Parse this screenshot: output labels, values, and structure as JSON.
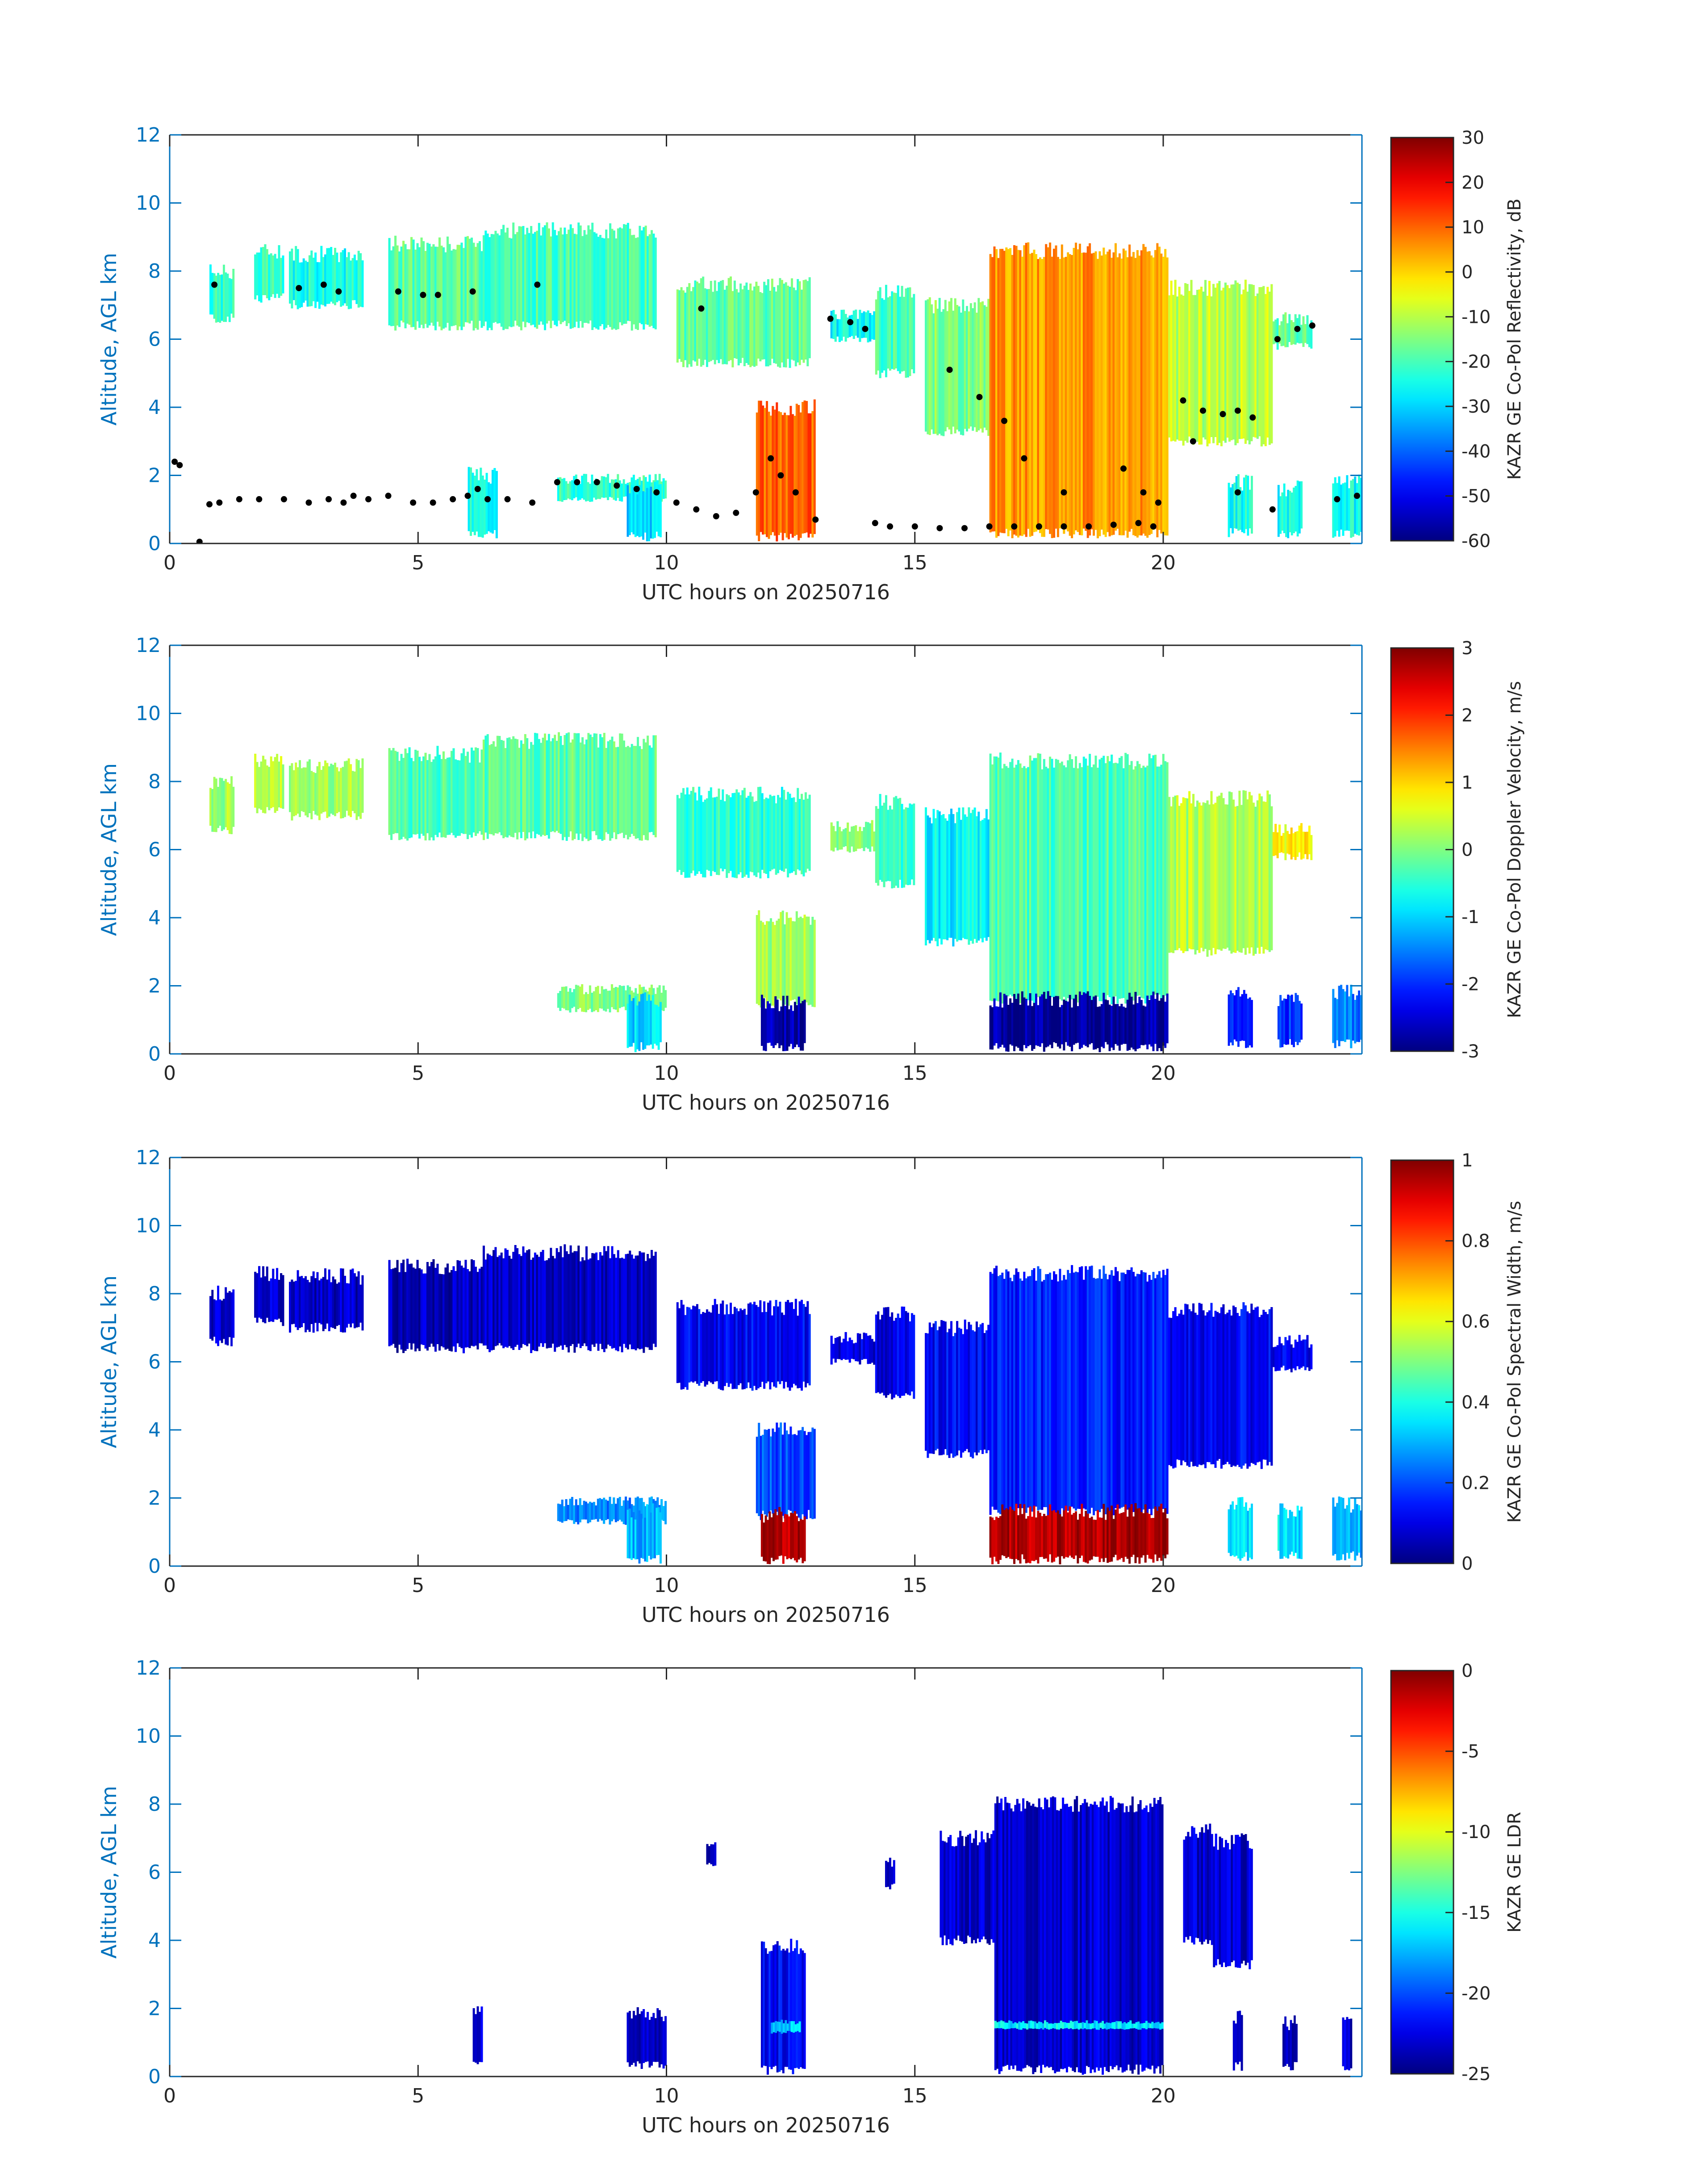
{
  "colors": {
    "axis_blue": "#0072BD",
    "tick_text_dark": "#262626",
    "echo_dots": "#000000"
  },
  "colormap": "jet",
  "chart_data": [
    {
      "type": "heatmap",
      "title": "",
      "xlabel": "UTC hours on 20250716",
      "ylabel": "Altitude, AGL km",
      "xlim": [
        0,
        24
      ],
      "ylim": [
        0,
        12
      ],
      "xticks": [
        0,
        5,
        10,
        15,
        20
      ],
      "yticks": [
        0,
        2,
        4,
        6,
        8,
        10,
        12
      ],
      "colorbar": {
        "label": "KAZR GE Co-Pol Reflectivity, dB",
        "min": -60,
        "max": 30,
        "ticks": [
          30,
          20,
          10,
          0,
          -10,
          -20,
          -30,
          -40,
          -50,
          -60
        ]
      },
      "variable": "reflectivity",
      "scatter_overlay": {
        "description": "cloud base / top markers",
        "color": "#000000",
        "points": [
          [
            0.1,
            2.4
          ],
          [
            0.2,
            2.3
          ],
          [
            0.6,
            0.05
          ],
          [
            0.8,
            1.15
          ],
          [
            1.0,
            1.2
          ],
          [
            1.4,
            1.3
          ],
          [
            1.8,
            1.3
          ],
          [
            2.3,
            1.3
          ],
          [
            2.8,
            1.2
          ],
          [
            3.2,
            1.3
          ],
          [
            3.5,
            1.2
          ],
          [
            3.7,
            1.4
          ],
          [
            4.0,
            1.3
          ],
          [
            4.4,
            1.4
          ],
          [
            4.9,
            1.2
          ],
          [
            5.3,
            1.2
          ],
          [
            5.7,
            1.3
          ],
          [
            6.0,
            1.4
          ],
          [
            6.2,
            1.6
          ],
          [
            6.4,
            1.3
          ],
          [
            6.8,
            1.3
          ],
          [
            7.3,
            1.2
          ],
          [
            7.8,
            1.8
          ],
          [
            8.2,
            1.8
          ],
          [
            8.6,
            1.8
          ],
          [
            9.0,
            1.7
          ],
          [
            9.4,
            1.6
          ],
          [
            9.8,
            1.5
          ],
          [
            10.2,
            1.2
          ],
          [
            10.6,
            1.0
          ],
          [
            11.0,
            0.8
          ],
          [
            11.4,
            0.9
          ],
          [
            11.8,
            1.5
          ],
          [
            12.1,
            2.5
          ],
          [
            12.3,
            2.0
          ],
          [
            12.6,
            1.5
          ],
          [
            13.0,
            0.7
          ],
          [
            14.2,
            0.6
          ],
          [
            14.5,
            0.5
          ],
          [
            15.0,
            0.5
          ],
          [
            15.5,
            0.45
          ],
          [
            16.0,
            0.45
          ],
          [
            16.5,
            0.5
          ],
          [
            17.0,
            0.5
          ],
          [
            17.5,
            0.5
          ],
          [
            18.0,
            0.5
          ],
          [
            18.5,
            0.5
          ],
          [
            19.0,
            0.55
          ],
          [
            19.5,
            0.6
          ],
          [
            19.8,
            0.5
          ],
          [
            16.8,
            3.6
          ],
          [
            17.2,
            2.5
          ],
          [
            18.0,
            1.5
          ],
          [
            19.2,
            2.2
          ],
          [
            19.6,
            1.5
          ],
          [
            19.9,
            1.2
          ],
          [
            0.9,
            7.6
          ],
          [
            2.6,
            7.5
          ],
          [
            3.1,
            7.6
          ],
          [
            3.4,
            7.4
          ],
          [
            4.6,
            7.4
          ],
          [
            5.1,
            7.3
          ],
          [
            5.4,
            7.3
          ],
          [
            6.1,
            7.4
          ],
          [
            7.4,
            7.6
          ],
          [
            10.7,
            6.9
          ],
          [
            13.3,
            6.6
          ],
          [
            13.7,
            6.5
          ],
          [
            14.0,
            6.3
          ],
          [
            15.7,
            5.1
          ],
          [
            16.3,
            4.3
          ],
          [
            20.4,
            4.2
          ],
          [
            20.8,
            3.9
          ],
          [
            21.2,
            3.8
          ],
          [
            21.5,
            3.9
          ],
          [
            21.8,
            3.7
          ],
          [
            22.3,
            6.0
          ],
          [
            22.7,
            6.3
          ],
          [
            23.0,
            6.4
          ],
          [
            20.6,
            3.0
          ],
          [
            21.5,
            1.5
          ],
          [
            22.2,
            1.0
          ],
          [
            23.5,
            1.3
          ],
          [
            23.9,
            1.4
          ]
        ]
      },
      "cloud_layers": [
        {
          "x": [
            0.8,
            1.3
          ],
          "base": 6.6,
          "top": 8.0,
          "value": -22
        },
        {
          "x": [
            1.7,
            2.3
          ],
          "base": 7.2,
          "top": 8.6,
          "value": -22
        },
        {
          "x": [
            2.4,
            3.9
          ],
          "base": 7.0,
          "top": 8.5,
          "value": -24
        },
        {
          "x": [
            4.4,
            6.3
          ],
          "base": 6.4,
          "top": 8.8,
          "value": -18
        },
        {
          "x": [
            6.3,
            9.8
          ],
          "base": 6.4,
          "top": 9.2,
          "value": -20
        },
        {
          "x": [
            10.2,
            12.9
          ],
          "base": 5.3,
          "top": 7.6,
          "value": -18
        },
        {
          "x": [
            13.3,
            14.2
          ],
          "base": 6.0,
          "top": 6.7,
          "value": -26
        },
        {
          "x": [
            14.2,
            15.0
          ],
          "base": 5.0,
          "top": 7.4,
          "value": -20
        },
        {
          "x": [
            15.2,
            16.5
          ],
          "base": 3.3,
          "top": 7.0,
          "value": -15
        },
        {
          "x": [
            16.5,
            20.1
          ],
          "base": 0.3,
          "top": 8.6,
          "value": 5
        },
        {
          "x": [
            20.1,
            22.2
          ],
          "base": 3.0,
          "top": 7.5,
          "value": -10
        },
        {
          "x": [
            22.2,
            23.0
          ],
          "base": 5.8,
          "top": 6.6,
          "value": -18
        },
        {
          "x": [
            11.8,
            13.0
          ],
          "base": 0.2,
          "top": 4.0,
          "value": 10
        },
        {
          "x": [
            7.8,
            10.0
          ],
          "base": 1.3,
          "top": 1.9,
          "value": -22
        },
        {
          "x": [
            6.0,
            6.6
          ],
          "base": 0.3,
          "top": 2.0,
          "value": -25
        },
        {
          "x": [
            9.2,
            9.9
          ],
          "base": 0.2,
          "top": 1.6,
          "value": -30
        },
        {
          "x": [
            21.3,
            21.8
          ],
          "base": 0.3,
          "top": 1.8,
          "value": -25
        },
        {
          "x": [
            22.3,
            22.8
          ],
          "base": 0.3,
          "top": 1.6,
          "value": -25
        },
        {
          "x": [
            23.4,
            24.0
          ],
          "base": 0.3,
          "top": 1.8,
          "value": -25
        }
      ]
    },
    {
      "type": "heatmap",
      "title": "",
      "xlabel": "UTC hours on 20250716",
      "ylabel": "Altitude, AGL km",
      "xlim": [
        0,
        24
      ],
      "ylim": [
        0,
        12
      ],
      "xticks": [
        0,
        5,
        10,
        15,
        20
      ],
      "yticks": [
        0,
        2,
        4,
        6,
        8,
        10,
        12
      ],
      "colorbar": {
        "label": "KAZR GE Co-Pol Doppler Velocity, m/s",
        "min": -3,
        "max": 3,
        "ticks": [
          3,
          2,
          1,
          0,
          -1,
          -2,
          -3
        ]
      },
      "variable": "doppler_velocity",
      "cloud_layers": [
        {
          "x": [
            0.8,
            1.3
          ],
          "base": 6.6,
          "top": 8.0,
          "value": 0.2
        },
        {
          "x": [
            1.7,
            2.3
          ],
          "base": 7.2,
          "top": 8.6,
          "value": 0.3
        },
        {
          "x": [
            2.4,
            3.9
          ],
          "base": 7.0,
          "top": 8.5,
          "value": 0.2
        },
        {
          "x": [
            4.4,
            6.3
          ],
          "base": 6.4,
          "top": 8.8,
          "value": -0.3
        },
        {
          "x": [
            6.3,
            9.8
          ],
          "base": 6.4,
          "top": 9.2,
          "value": -0.2
        },
        {
          "x": [
            10.2,
            12.9
          ],
          "base": 5.3,
          "top": 7.6,
          "value": -0.5
        },
        {
          "x": [
            13.3,
            14.2
          ],
          "base": 6.0,
          "top": 6.7,
          "value": 0.0
        },
        {
          "x": [
            14.2,
            15.0
          ],
          "base": 5.0,
          "top": 7.4,
          "value": -0.5
        },
        {
          "x": [
            15.2,
            16.5
          ],
          "base": 3.3,
          "top": 7.0,
          "value": -0.8
        },
        {
          "x": [
            16.5,
            20.1
          ],
          "base": 1.6,
          "top": 8.6,
          "value": -0.3
        },
        {
          "x": [
            16.5,
            20.1
          ],
          "base": 0.2,
          "top": 1.6,
          "value": -2.8
        },
        {
          "x": [
            20.1,
            22.2
          ],
          "base": 3.0,
          "top": 7.5,
          "value": 0.3
        },
        {
          "x": [
            22.2,
            23.0
          ],
          "base": 5.8,
          "top": 6.6,
          "value": 0.8
        },
        {
          "x": [
            11.8,
            13.0
          ],
          "base": 1.5,
          "top": 4.0,
          "value": 0.2
        },
        {
          "x": [
            11.9,
            12.8
          ],
          "base": 0.2,
          "top": 1.5,
          "value": -2.7
        },
        {
          "x": [
            7.8,
            10.0
          ],
          "base": 1.3,
          "top": 1.9,
          "value": 0.0
        },
        {
          "x": [
            9.2,
            9.9
          ],
          "base": 0.2,
          "top": 1.6,
          "value": -1.0
        },
        {
          "x": [
            21.3,
            21.8
          ],
          "base": 0.3,
          "top": 1.8,
          "value": -2.0
        },
        {
          "x": [
            22.3,
            22.8
          ],
          "base": 0.3,
          "top": 1.6,
          "value": -2.0
        },
        {
          "x": [
            23.4,
            24.0
          ],
          "base": 0.3,
          "top": 1.8,
          "value": -1.5
        }
      ]
    },
    {
      "type": "heatmap",
      "title": "",
      "xlabel": "UTC hours on 20250716",
      "ylabel": "Altitude, AGL km",
      "xlim": [
        0,
        24
      ],
      "ylim": [
        0,
        12
      ],
      "xticks": [
        0,
        5,
        10,
        15,
        20
      ],
      "yticks": [
        0,
        2,
        4,
        6,
        8,
        10,
        12
      ],
      "colorbar": {
        "label": "KAZR GE Co-Pol Spectral Width, m/s",
        "min": 0,
        "max": 1,
        "ticks": [
          1,
          0.8,
          0.6,
          0.4,
          0.2,
          0
        ]
      },
      "variable": "spectral_width",
      "cloud_layers": [
        {
          "x": [
            0.8,
            1.3
          ],
          "base": 6.6,
          "top": 8.0,
          "value": 0.08
        },
        {
          "x": [
            1.7,
            2.3
          ],
          "base": 7.2,
          "top": 8.6,
          "value": 0.08
        },
        {
          "x": [
            2.4,
            3.9
          ],
          "base": 7.0,
          "top": 8.5,
          "value": 0.07
        },
        {
          "x": [
            4.4,
            6.3
          ],
          "base": 6.4,
          "top": 8.8,
          "value": 0.06
        },
        {
          "x": [
            6.3,
            9.8
          ],
          "base": 6.4,
          "top": 9.2,
          "value": 0.07
        },
        {
          "x": [
            10.2,
            12.9
          ],
          "base": 5.3,
          "top": 7.6,
          "value": 0.12
        },
        {
          "x": [
            13.3,
            14.2
          ],
          "base": 6.0,
          "top": 6.7,
          "value": 0.1
        },
        {
          "x": [
            14.2,
            15.0
          ],
          "base": 5.0,
          "top": 7.4,
          "value": 0.1
        },
        {
          "x": [
            15.2,
            16.5
          ],
          "base": 3.3,
          "top": 7.0,
          "value": 0.12
        },
        {
          "x": [
            16.5,
            20.1
          ],
          "base": 1.6,
          "top": 8.6,
          "value": 0.15
        },
        {
          "x": [
            16.5,
            20.1
          ],
          "base": 0.2,
          "top": 1.6,
          "value": 0.95
        },
        {
          "x": [
            20.1,
            22.2
          ],
          "base": 3.0,
          "top": 7.5,
          "value": 0.12
        },
        {
          "x": [
            22.2,
            23.0
          ],
          "base": 5.8,
          "top": 6.6,
          "value": 0.1
        },
        {
          "x": [
            11.8,
            13.0
          ],
          "base": 1.5,
          "top": 4.0,
          "value": 0.2
        },
        {
          "x": [
            11.9,
            12.8
          ],
          "base": 0.2,
          "top": 1.5,
          "value": 0.95
        },
        {
          "x": [
            7.8,
            10.0
          ],
          "base": 1.3,
          "top": 1.9,
          "value": 0.25
        },
        {
          "x": [
            9.2,
            9.9
          ],
          "base": 0.2,
          "top": 1.6,
          "value": 0.3
        },
        {
          "x": [
            21.3,
            21.8
          ],
          "base": 0.3,
          "top": 1.8,
          "value": 0.35
        },
        {
          "x": [
            22.3,
            22.8
          ],
          "base": 0.3,
          "top": 1.6,
          "value": 0.35
        },
        {
          "x": [
            23.4,
            24.0
          ],
          "base": 0.3,
          "top": 1.8,
          "value": 0.3
        }
      ]
    },
    {
      "type": "heatmap",
      "title": "",
      "xlabel": "UTC hours on 20250716",
      "ylabel": "Altitude, AGL km",
      "xlim": [
        0,
        24
      ],
      "ylim": [
        0,
        12
      ],
      "xticks": [
        0,
        5,
        10,
        15,
        20
      ],
      "yticks": [
        0,
        2,
        4,
        6,
        8,
        10,
        12
      ],
      "colorbar": {
        "label": "KAZR GE LDR",
        "min": -25,
        "max": 0,
        "ticks": [
          0,
          -5,
          -10,
          -15,
          -20,
          -25
        ]
      },
      "variable": "ldr",
      "cloud_layers": [
        {
          "x": [
            10.8,
            11.0
          ],
          "base": 6.2,
          "top": 6.8,
          "value": -23
        },
        {
          "x": [
            14.4,
            14.6
          ],
          "base": 5.6,
          "top": 6.3,
          "value": -23
        },
        {
          "x": [
            15.5,
            16.6
          ],
          "base": 4.0,
          "top": 7.0,
          "value": -23
        },
        {
          "x": [
            16.6,
            20.0
          ],
          "base": 0.2,
          "top": 8.0,
          "value": -23
        },
        {
          "x": [
            16.6,
            20.0
          ],
          "base": 1.4,
          "top": 1.6,
          "value": -16
        },
        {
          "x": [
            20.4,
            21.0
          ],
          "base": 4.0,
          "top": 7.2,
          "value": -23
        },
        {
          "x": [
            21.0,
            21.8
          ],
          "base": 3.3,
          "top": 6.9,
          "value": -23
        },
        {
          "x": [
            11.9,
            12.8
          ],
          "base": 0.2,
          "top": 3.8,
          "value": -22
        },
        {
          "x": [
            12.1,
            12.7
          ],
          "base": 1.3,
          "top": 1.6,
          "value": -17
        },
        {
          "x": [
            9.2,
            10.0
          ],
          "base": 0.3,
          "top": 1.8,
          "value": -23
        },
        {
          "x": [
            6.1,
            6.3
          ],
          "base": 0.3,
          "top": 1.9,
          "value": -23
        },
        {
          "x": [
            21.4,
            21.6
          ],
          "base": 0.3,
          "top": 1.8,
          "value": -23
        },
        {
          "x": [
            22.4,
            22.7
          ],
          "base": 0.3,
          "top": 1.6,
          "value": -23
        },
        {
          "x": [
            23.6,
            23.8
          ],
          "base": 0.3,
          "top": 1.8,
          "value": -23
        }
      ]
    }
  ]
}
